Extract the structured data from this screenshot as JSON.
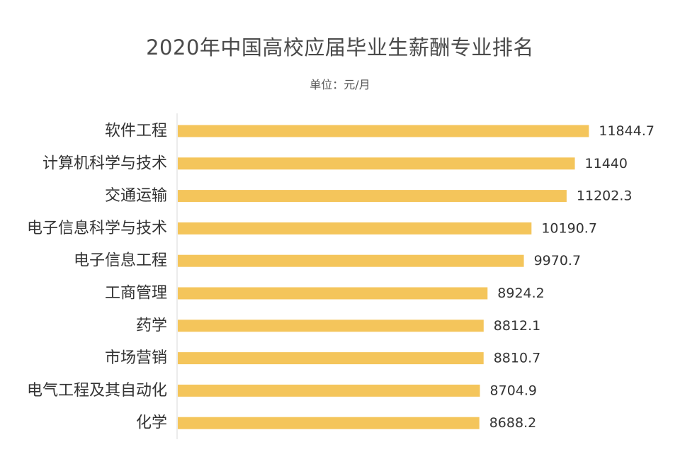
{
  "chart_data": {
    "type": "bar",
    "orientation": "horizontal",
    "title": "2020年中国高校应届毕业生薪酬专业排名",
    "subtitle": "单位：元/月",
    "categories": [
      "软件工程",
      "计算机科学与技术",
      "交通运输",
      "电子信息科学与技术",
      "电子信息工程",
      "工商管理",
      "药学",
      "市场营销",
      "电气工程及其自动化",
      "化学"
    ],
    "values": [
      11844.7,
      11440,
      11202.3,
      10190.7,
      9970.7,
      8924.2,
      8812.1,
      8810.7,
      8704.9,
      8688.2
    ],
    "value_labels": [
      "11844.7",
      "11440",
      "11202.3",
      "10190.7",
      "9970.7",
      "8924.2",
      "8812.1",
      "8810.7",
      "8704.9",
      "8688.2"
    ],
    "xlim": [
      0,
      12000
    ],
    "grid": false,
    "legend": "none",
    "bar_color": "#F4C55B",
    "axis_color": "#d9d9d9"
  }
}
